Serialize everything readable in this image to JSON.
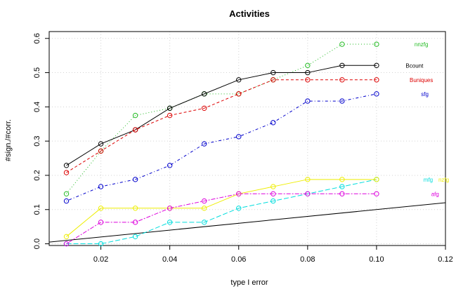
{
  "chart_data": {
    "type": "line",
    "title": "Activities",
    "xlabel": "type I error",
    "ylabel": "#sign./#corr.",
    "xlim": [
      0.005,
      0.12
    ],
    "ylim": [
      -0.005,
      0.62
    ],
    "xticks": [
      0.02,
      0.04,
      0.06,
      0.08,
      0.1,
      0.12
    ],
    "xtick_labels": [
      "0.02",
      "0.04",
      "0.06",
      "0.08",
      "0.10",
      "0.12"
    ],
    "yticks": [
      0.0,
      0.1,
      0.2,
      0.3,
      0.4,
      0.5,
      0.6
    ],
    "ytick_labels": [
      "0.0",
      "0.1",
      "0.2",
      "0.3",
      "0.4",
      "0.5",
      "0.6"
    ],
    "grid": true,
    "x": [
      0.01,
      0.02,
      0.03,
      0.04,
      0.05,
      0.06,
      0.07,
      0.08,
      0.09,
      0.1
    ],
    "series": [
      {
        "name": "nnzfg",
        "color": "#22bb22",
        "dash": "dotted",
        "label_pos": [
          0.113,
          0.583
        ],
        "values": [
          0.146,
          0.271,
          0.375,
          0.396,
          0.438,
          0.438,
          0.479,
          0.521,
          0.583,
          0.583
        ]
      },
      {
        "name": "Bcount",
        "color": "#000000",
        "dash": "solid",
        "label_pos": [
          0.111,
          0.521
        ],
        "values": [
          0.229,
          0.292,
          0.333,
          0.396,
          0.438,
          0.479,
          0.5,
          0.5,
          0.521,
          0.521
        ]
      },
      {
        "name": "Buniques",
        "color": "#dd0000",
        "dash": "dashed",
        "label_pos": [
          0.113,
          0.479
        ],
        "values": [
          0.208,
          0.271,
          0.333,
          0.375,
          0.396,
          0.438,
          0.479,
          0.479,
          0.479,
          0.479
        ]
      },
      {
        "name": "sfg",
        "color": "#0000cc",
        "dash": "dashdot",
        "label_pos": [
          0.114,
          0.438
        ],
        "values": [
          0.125,
          0.167,
          0.188,
          0.229,
          0.292,
          0.313,
          0.354,
          0.417,
          0.417,
          0.438
        ]
      },
      {
        "name": "mfg",
        "color": "#00dddd",
        "dash": "longdash",
        "label_pos": [
          0.115,
          0.188
        ],
        "values": [
          0.0,
          0.0,
          0.021,
          0.063,
          0.063,
          0.104,
          0.125,
          0.146,
          0.167,
          0.188
        ]
      },
      {
        "name": "nzfg",
        "color": "#eeee00",
        "dash": "solid",
        "label_pos": [
          0.1195,
          0.188
        ],
        "values": [
          0.021,
          0.104,
          0.104,
          0.104,
          0.104,
          0.146,
          0.167,
          0.188,
          0.188,
          0.188
        ]
      },
      {
        "name": "afg",
        "color": "#dd00dd",
        "dash": "twodash",
        "label_pos": [
          0.117,
          0.146
        ],
        "values": [
          0.0,
          0.063,
          0.063,
          0.104,
          0.125,
          0.146,
          0.146,
          0.146,
          0.146,
          0.146
        ]
      }
    ],
    "reference_line": {
      "color": "#000000",
      "from": [
        0.0,
        0.0
      ],
      "to": [
        0.12,
        0.12
      ]
    }
  }
}
